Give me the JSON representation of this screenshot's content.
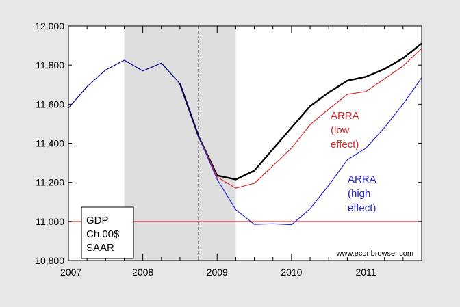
{
  "chart_data": {
    "type": "line",
    "title": "",
    "xlabel": "",
    "ylabel": "",
    "x_tick_labels": [
      "2007",
      "2008",
      "2009",
      "2010",
      "2011"
    ],
    "ylim": [
      10800,
      12000
    ],
    "y_ticks": [
      10800,
      11000,
      11200,
      11400,
      11600,
      11800,
      12000
    ],
    "y_tick_labels": [
      "10,800",
      "11,000",
      "11,200",
      "11,400",
      "11,600",
      "11,800",
      "12,000"
    ],
    "x_range": [
      2007.0,
      2011.75
    ],
    "grid": false,
    "recession_shading": {
      "start": 2007.75,
      "end": 2009.25,
      "color": "#dedede"
    },
    "vertical_marker": {
      "x": 2008.75,
      "style": "dashed",
      "color": "#000000"
    },
    "reference_line": {
      "y": 11000,
      "color": "#e8322e"
    },
    "legend_box_text": [
      "GDP",
      "Ch.00$",
      "SAAR"
    ],
    "watermark": "www.econbrowser.com",
    "series": [
      {
        "name": "",
        "color": "#000000",
        "x": [
          2008.5,
          2008.75,
          2009.0,
          2009.25,
          2009.5,
          2009.75,
          2010.0,
          2010.25,
          2010.5,
          2010.75,
          2011.0,
          2011.25,
          2011.5,
          2011.75
        ],
        "values": [
          11705,
          11435,
          11235,
          11215,
          11260,
          11370,
          11480,
          11590,
          11660,
          11720,
          11740,
          11780,
          11835,
          11910
        ]
      },
      {
        "name": "ARRA (low effect)",
        "color": "#d42b2b",
        "x": [
          2008.5,
          2008.75,
          2009.0,
          2009.25,
          2009.5,
          2009.75,
          2010.0,
          2010.25,
          2010.5,
          2010.75,
          2011.0,
          2011.25,
          2011.5,
          2011.75
        ],
        "values": [
          11705,
          11435,
          11228,
          11170,
          11195,
          11285,
          11375,
          11495,
          11575,
          11650,
          11665,
          11730,
          11795,
          11885
        ]
      },
      {
        "name": "ARRA (high effect)",
        "color": "#2323d6",
        "x": [
          2008.75,
          2009.0,
          2009.25,
          2009.5,
          2009.75,
          2010.0,
          2010.25,
          2010.5,
          2010.75,
          2011.0,
          2011.25,
          2011.5,
          2011.75
        ],
        "values": [
          11435,
          11215,
          11060,
          10985,
          10988,
          10983,
          11065,
          11185,
          11315,
          11375,
          11480,
          11600,
          11735
        ]
      },
      {
        "name": "",
        "color": "#00008b",
        "x": [
          2007.0,
          2007.25,
          2007.5,
          2007.75,
          2008.0,
          2008.25,
          2008.5,
          2008.75
        ],
        "values": [
          11580,
          11690,
          11775,
          11825,
          11770,
          11810,
          11705,
          11435
        ]
      }
    ],
    "annotations": [
      {
        "lines": [
          "ARRA",
          "(low",
          "effect)"
        ],
        "color": "#d42b2b"
      },
      {
        "lines": [
          "ARRA",
          "(high",
          "effect)"
        ],
        "color": "#2323d6"
      }
    ]
  }
}
